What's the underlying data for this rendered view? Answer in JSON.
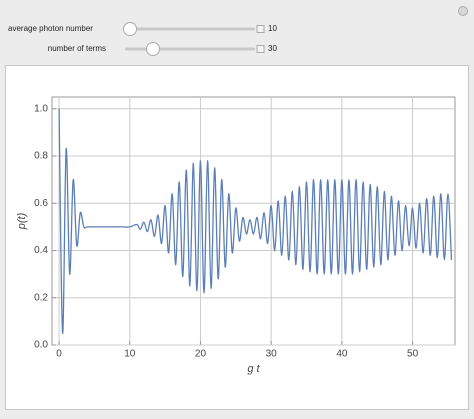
{
  "controls": [
    {
      "label": "average photon number",
      "value": "10"
    },
    {
      "label": "number of terms",
      "value": "30"
    }
  ],
  "chart_data": {
    "type": "line",
    "xlabel": "g t",
    "ylabel": "p(t)",
    "x": [
      0,
      0.5,
      1,
      1.5,
      2,
      2.5,
      3,
      3.5,
      4,
      5,
      6,
      7,
      8,
      9,
      10,
      11,
      11.5,
      12,
      12.5,
      13,
      13.5,
      14,
      14.5,
      15,
      15.5,
      16,
      16.5,
      17,
      17.5,
      18,
      18.5,
      19,
      19.5,
      20,
      20.5,
      21,
      21.5,
      22,
      22.5,
      23,
      23.5,
      24,
      24.5,
      25,
      25.5,
      26,
      26.5,
      27,
      27.5,
      28,
      28.5,
      29,
      29.5,
      30,
      30.5,
      31,
      31.5,
      32,
      32.5,
      33,
      33.5,
      34,
      34.5,
      35,
      35.5,
      36,
      36.5,
      37,
      37.5,
      38,
      38.5,
      39,
      39.5,
      40,
      40.5,
      41,
      41.5,
      42,
      42.5,
      43,
      43.5,
      44,
      44.5,
      45,
      45.5,
      46,
      46.5,
      47,
      47.5,
      48,
      48.5,
      49,
      49.5,
      50,
      50.5,
      51,
      51.5,
      52,
      52.5,
      53,
      53.5,
      54,
      54.5,
      55,
      55.5
    ],
    "values": [
      1.0,
      0.05,
      0.83,
      0.3,
      0.7,
      0.42,
      0.56,
      0.5,
      0.5,
      0.5,
      0.5,
      0.5,
      0.5,
      0.5,
      0.5,
      0.51,
      0.49,
      0.52,
      0.48,
      0.53,
      0.46,
      0.55,
      0.43,
      0.59,
      0.39,
      0.64,
      0.34,
      0.69,
      0.29,
      0.74,
      0.25,
      0.77,
      0.23,
      0.78,
      0.22,
      0.78,
      0.24,
      0.75,
      0.28,
      0.7,
      0.33,
      0.64,
      0.39,
      0.58,
      0.44,
      0.54,
      0.47,
      0.53,
      0.47,
      0.54,
      0.45,
      0.56,
      0.43,
      0.59,
      0.4,
      0.61,
      0.38,
      0.63,
      0.36,
      0.65,
      0.34,
      0.67,
      0.32,
      0.69,
      0.31,
      0.7,
      0.3,
      0.7,
      0.3,
      0.7,
      0.3,
      0.7,
      0.3,
      0.7,
      0.3,
      0.7,
      0.3,
      0.7,
      0.31,
      0.69,
      0.32,
      0.68,
      0.33,
      0.67,
      0.34,
      0.65,
      0.36,
      0.63,
      0.38,
      0.61,
      0.4,
      0.59,
      0.42,
      0.58,
      0.41,
      0.6,
      0.39,
      0.62,
      0.38,
      0.63,
      0.37,
      0.64,
      0.36,
      0.64,
      0.36
    ],
    "color": "#5b7fb5",
    "xlim": [
      -1,
      56
    ],
    "ylim": [
      0,
      1.05
    ],
    "xticks": [
      0,
      10,
      20,
      30,
      40,
      50
    ],
    "yticks": [
      {
        "value": 0,
        "label": "0.0"
      },
      0.2,
      0.4,
      0.6,
      0.8,
      {
        "value": 1,
        "label": "1.0"
      }
    ],
    "grid": true
  }
}
